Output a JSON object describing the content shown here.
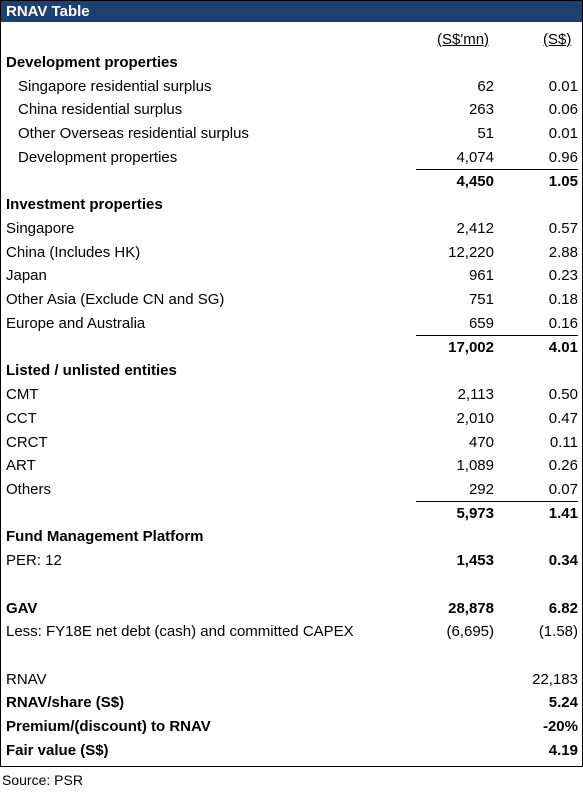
{
  "header": {
    "title": "RNAV Table",
    "columns": [
      "(S$'mn)",
      "(S$)"
    ]
  },
  "table": {
    "rows": [
      {
        "label": "Development properties"
      },
      {
        "label": "Singapore residential surplus",
        "mn": "62",
        "per_share": "0.01"
      },
      {
        "label": "China residential surplus",
        "mn": "263",
        "per_share": "0.06"
      },
      {
        "label": "Other Overseas residential surplus",
        "mn": "51",
        "per_share": "0.01"
      },
      {
        "label": "Development properties",
        "mn": "4,074",
        "per_share": "0.96"
      },
      {
        "mn": "4,450",
        "per_share": "1.05"
      },
      {
        "label": "Investment properties"
      },
      {
        "label": "Singapore",
        "mn": "2,412",
        "per_share": "0.57"
      },
      {
        "label": "China (Includes HK)",
        "mn": "12,220",
        "per_share": "2.88"
      },
      {
        "label": "Japan",
        "mn": "961",
        "per_share": "0.23"
      },
      {
        "label": "Other Asia (Exclude CN and SG)",
        "mn": "751",
        "per_share": "0.18"
      },
      {
        "label": "Europe and Australia",
        "mn": "659",
        "per_share": "0.16"
      },
      {
        "mn": "17,002",
        "per_share": "4.01"
      },
      {
        "label": "Listed / unlisted entities"
      },
      {
        "label": "CMT",
        "mn": "2,113",
        "per_share": "0.50"
      },
      {
        "label": "CCT",
        "mn": "2,010",
        "per_share": "0.47"
      },
      {
        "label": "CRCT",
        "mn": "470",
        "per_share": "0.11"
      },
      {
        "label": "ART",
        "mn": "1,089",
        "per_share": "0.26"
      },
      {
        "label": "Others",
        "mn": "292",
        "per_share": "0.07"
      },
      {
        "mn": "5,973",
        "per_share": "1.41"
      },
      {
        "label": "Fund Management Platform"
      },
      {
        "label": "PER: 12",
        "mn": "1,453",
        "per_share": "0.34"
      },
      {
        "label": "GAV",
        "mn": "28,878",
        "per_share": "6.82"
      },
      {
        "label": "Less: FY18E net debt (cash) and committed CAPEX",
        "mn": "(6,695)",
        "per_share": "(1.58)"
      },
      {
        "label": "RNAV",
        "per_share": "22,183"
      },
      {
        "label": "RNAV/share (S$)",
        "per_share": "5.24"
      },
      {
        "label": "Premium/(discount) to RNAV",
        "per_share": "-20%"
      },
      {
        "label": "Fair value (S$)",
        "per_share": "4.19"
      }
    ]
  },
  "footer": {
    "source": "Source: PSR"
  }
}
